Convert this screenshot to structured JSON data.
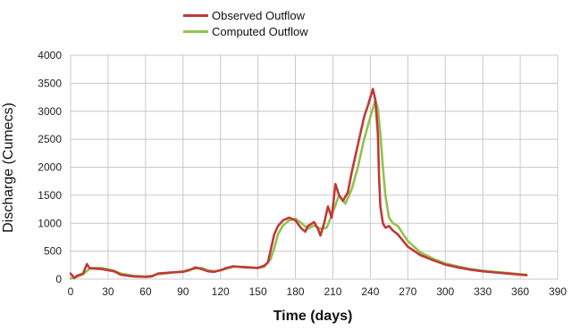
{
  "chart_data": {
    "type": "line",
    "title": "",
    "xlabel": "Time (days)",
    "ylabel": "Discharge (Cumecs)",
    "xlim": [
      0,
      390
    ],
    "ylim": [
      0,
      4000
    ],
    "xticks": [
      0,
      30,
      60,
      90,
      120,
      150,
      180,
      210,
      240,
      270,
      300,
      330,
      360,
      390
    ],
    "yticks": [
      0,
      500,
      1000,
      1500,
      2000,
      2500,
      3000,
      3500,
      4000
    ],
    "grid": true,
    "legend_position": "top-center",
    "series": [
      {
        "name": "Observed Outflow",
        "color": "#c0393b",
        "x": [
          0,
          3,
          5,
          10,
          13,
          15,
          18,
          25,
          35,
          40,
          50,
          60,
          65,
          70,
          80,
          90,
          95,
          100,
          105,
          110,
          115,
          120,
          125,
          130,
          140,
          150,
          155,
          158,
          160,
          163,
          166,
          170,
          175,
          180,
          185,
          188,
          190,
          195,
          198,
          200,
          203,
          206,
          209,
          212,
          215,
          218,
          222,
          225,
          230,
          235,
          238,
          240,
          242,
          244,
          246,
          247,
          248,
          250,
          252,
          255,
          258,
          262,
          270,
          280,
          290,
          300,
          310,
          320,
          330,
          340,
          350,
          360,
          365
        ],
        "y": [
          100,
          20,
          60,
          100,
          270,
          200,
          190,
          180,
          140,
          80,
          50,
          40,
          50,
          100,
          120,
          130,
          160,
          210,
          180,
          140,
          130,
          160,
          200,
          230,
          210,
          200,
          240,
          300,
          500,
          800,
          950,
          1050,
          1100,
          1050,
          900,
          850,
          950,
          1020,
          900,
          780,
          1000,
          1300,
          1100,
          1700,
          1500,
          1400,
          1550,
          1900,
          2400,
          2900,
          3100,
          3250,
          3400,
          3200,
          2600,
          1800,
          1300,
          1000,
          920,
          950,
          870,
          800,
          580,
          430,
          340,
          260,
          210,
          170,
          140,
          120,
          100,
          80,
          70
        ]
      },
      {
        "name": "Computed Outflow",
        "color": "#92c24a",
        "x": [
          0,
          5,
          10,
          15,
          18,
          25,
          35,
          40,
          50,
          60,
          65,
          70,
          80,
          90,
          95,
          100,
          105,
          110,
          115,
          120,
          125,
          130,
          140,
          150,
          155,
          160,
          163,
          166,
          170,
          175,
          180,
          185,
          190,
          195,
          200,
          205,
          210,
          215,
          220,
          225,
          230,
          235,
          240,
          244,
          246,
          248,
          250,
          252,
          255,
          258,
          262,
          270,
          280,
          290,
          300,
          310,
          320,
          330,
          340,
          350,
          360,
          365
        ],
        "y": [
          10,
          40,
          90,
          180,
          200,
          200,
          150,
          100,
          60,
          50,
          60,
          90,
          110,
          140,
          170,
          190,
          200,
          160,
          140,
          160,
          190,
          220,
          220,
          200,
          220,
          350,
          550,
          800,
          960,
          1050,
          1080,
          1000,
          900,
          960,
          900,
          920,
          1200,
          1500,
          1350,
          1600,
          2000,
          2500,
          2900,
          3200,
          3050,
          2600,
          2000,
          1500,
          1100,
          1000,
          950,
          680,
          480,
          370,
          280,
          230,
          180,
          150,
          130,
          110,
          90,
          80
        ]
      }
    ]
  }
}
